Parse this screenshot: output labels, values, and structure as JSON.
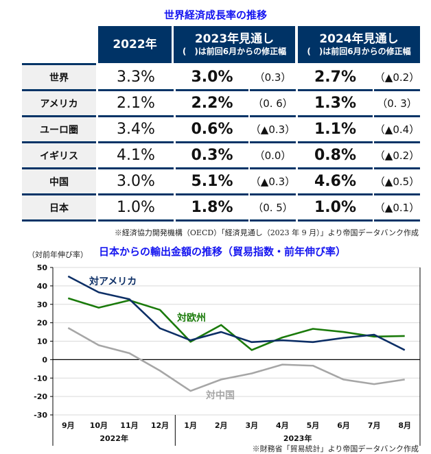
{
  "table": {
    "title": "世界経済成長率の推移",
    "headers": {
      "y2022": "2022年",
      "y2023": "2023年見通し",
      "y2023_sub": "(　)は前回6月からの修正幅",
      "y2024": "2024年見通し",
      "y2024_sub": "(　)は前回6月からの修正幅"
    },
    "rows": [
      {
        "label": "世界",
        "v2022": "3.3%",
        "v2023": "3.0%",
        "r2023": "（0.3）",
        "v2024": "2.7%",
        "r2024": "（▲0.2）"
      },
      {
        "label": "アメリカ",
        "v2022": "2.1%",
        "v2023": "2.2%",
        "r2023": "（0. 6）",
        "v2024": "1.3%",
        "r2024": "（0. 3）"
      },
      {
        "label": "ユーロ圏",
        "v2022": "3.4%",
        "v2023": "0.6%",
        "r2023": "（▲0.3）",
        "v2024": "1.1%",
        "r2024": "（▲0.4）"
      },
      {
        "label": "イギリス",
        "v2022": "4.1%",
        "v2023": "0.3%",
        "r2023": "（0.0）",
        "v2024": "0.8%",
        "r2024": "（▲0.2）"
      },
      {
        "label": "中国",
        "v2022": "3.0%",
        "v2023": "5.1%",
        "r2023": "（▲0.3）",
        "v2024": "4.6%",
        "r2024": "（▲0.5）"
      },
      {
        "label": "日本",
        "v2022": "1.0%",
        "v2023": "1.8%",
        "r2023": "（0. 5）",
        "v2024": "1.0%",
        "r2024": "（▲0.1）"
      }
    ],
    "source": "※経済協力開発機構（OECD）「経済見通し（2023 年 9 月）」より帝国データバンク作成"
  },
  "chart_data": {
    "type": "line",
    "title": "日本からの輸出金額の推移（貿易指数・前年伸び率）",
    "ylabel": "（対前年伸び率）",
    "ylim": [
      -30,
      50
    ],
    "yticks": [
      50,
      40,
      30,
      20,
      10,
      0,
      -10,
      -20,
      -30
    ],
    "grid": true,
    "categories": [
      "9月",
      "10月",
      "11月",
      "12月",
      "1月",
      "2月",
      "3月",
      "4月",
      "5月",
      "6月",
      "7月",
      "8月"
    ],
    "year_groups": [
      {
        "label": "2022年",
        "count": 4
      },
      {
        "label": "2023年",
        "count": 8
      }
    ],
    "series": [
      {
        "name": "対アメリカ",
        "color": "#0d2f66",
        "values": [
          45.2,
          36.5,
          32.8,
          17,
          10.5,
          15,
          9.5,
          10.5,
          9.5,
          11.8,
          13.5,
          5.2
        ]
      },
      {
        "name": "対欧州",
        "color": "#1a7a0a",
        "values": [
          33.3,
          28.2,
          32.2,
          27,
          9.7,
          18.8,
          5.2,
          12,
          16.7,
          15,
          12.5,
          12.8
        ]
      },
      {
        "name": "対中国",
        "color": "#a6a6a6",
        "values": [
          17.2,
          7.8,
          3.5,
          -6,
          -17,
          -10.8,
          -7.5,
          -2.7,
          -3.3,
          -10.8,
          -13.3,
          -10.8
        ]
      }
    ],
    "source": "※財務省「貿易統計」より帝国データバンク作成"
  }
}
